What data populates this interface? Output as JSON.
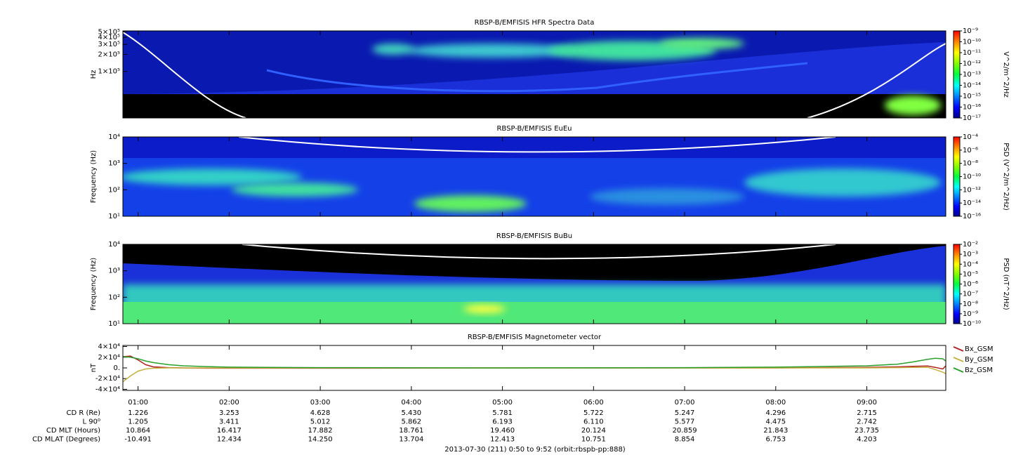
{
  "chart_data": [
    {
      "type": "spectrogram",
      "title": "RBSP-B/EMFISIS  HFR Spectra Data",
      "ylabel": "Hz",
      "log_y": true,
      "ylim": [
        15000,
        520000
      ],
      "yticks": [
        {
          "value": 500000,
          "label": "5×10⁵"
        },
        {
          "value": 400000,
          "label": "4×10⁵"
        },
        {
          "value": 300000,
          "label": "3×10⁵"
        },
        {
          "value": 200000,
          "label": "2×10⁵"
        },
        {
          "value": 100000,
          "label": "1×10⁵"
        }
      ],
      "colorbar_label": "V^2/m^2/Hz",
      "zlim": [
        1e-17,
        1e-09
      ],
      "zticks": [
        {
          "value": 1e-09,
          "label": "10⁻⁹"
        },
        {
          "value": 1e-10,
          "label": "10⁻¹⁰"
        },
        {
          "value": 1e-11,
          "label": "10⁻¹¹"
        },
        {
          "value": 1e-12,
          "label": "10⁻¹²"
        },
        {
          "value": 1e-13,
          "label": "10⁻¹³"
        },
        {
          "value": 1e-14,
          "label": "10⁻¹⁴"
        },
        {
          "value": 1e-15,
          "label": "10⁻¹⁵"
        },
        {
          "value": 1e-16,
          "label": "10⁻¹⁶"
        },
        {
          "value": 1e-17,
          "label": "10⁻¹⁷"
        }
      ]
    },
    {
      "type": "spectrogram",
      "title": "RBSP-B/EMFISIS  EuEu",
      "ylabel": "Frequency (Hz)",
      "log_y": true,
      "ylim": [
        10,
        10000
      ],
      "yticks": [
        {
          "value": 10000,
          "label": "10⁴"
        },
        {
          "value": 1000,
          "label": "10³"
        },
        {
          "value": 100,
          "label": "10²"
        },
        {
          "value": 10,
          "label": "10¹"
        }
      ],
      "colorbar_label": "PSD (V^2/m^2/Hz)",
      "zlim": [
        1e-16,
        0.0001
      ],
      "zticks": [
        {
          "value": 0.0001,
          "label": "10⁻⁴"
        },
        {
          "value": 1e-06,
          "label": "10⁻⁶"
        },
        {
          "value": 1e-08,
          "label": "10⁻⁸"
        },
        {
          "value": 1e-10,
          "label": "10⁻¹⁰"
        },
        {
          "value": 1e-12,
          "label": "10⁻¹²"
        },
        {
          "value": 1e-14,
          "label": "10⁻¹⁴"
        },
        {
          "value": 1e-16,
          "label": "10⁻¹⁶"
        }
      ]
    },
    {
      "type": "spectrogram",
      "title": "RBSP-B/EMFISIS  BuBu",
      "ylabel": "Frequency (Hz)",
      "log_y": true,
      "ylim": [
        10,
        10000
      ],
      "yticks": [
        {
          "value": 10000,
          "label": "10⁴"
        },
        {
          "value": 1000,
          "label": "10³"
        },
        {
          "value": 100,
          "label": "10²"
        },
        {
          "value": 10,
          "label": "10¹"
        }
      ],
      "colorbar_label": "PSD (nT^2/Hz)",
      "zlim": [
        1e-10,
        0.01
      ],
      "zticks": [
        {
          "value": 0.01,
          "label": "10⁻²"
        },
        {
          "value": 0.001,
          "label": "10⁻³"
        },
        {
          "value": 0.0001,
          "label": "10⁻⁴"
        },
        {
          "value": 1e-05,
          "label": "10⁻⁵"
        },
        {
          "value": 1e-06,
          "label": "10⁻⁶"
        },
        {
          "value": 1e-07,
          "label": "10⁻⁷"
        },
        {
          "value": 1e-08,
          "label": "10⁻⁸"
        },
        {
          "value": 1e-09,
          "label": "10⁻⁹"
        },
        {
          "value": 1e-10,
          "label": "10⁻¹⁰"
        }
      ]
    },
    {
      "type": "line",
      "title": "RBSP-B/EMFISIS  Magnetometer vector",
      "ylabel": "nT",
      "ylim": [
        -42000,
        42000
      ],
      "yticks": [
        {
          "value": 40000,
          "label": "4×10⁴"
        },
        {
          "value": 20000,
          "label": "2×10⁴"
        },
        {
          "value": 0,
          "label": "0."
        },
        {
          "value": -20000,
          "label": "-2×10⁴"
        },
        {
          "value": -40000,
          "label": "-4×10⁴"
        }
      ],
      "x": [
        50,
        55,
        60,
        65,
        70,
        80,
        90,
        105,
        120,
        180,
        300,
        420,
        480,
        540,
        560,
        570,
        580,
        585,
        590,
        592
      ],
      "series": [
        {
          "name": "Bx_GSM",
          "color": "#b22222",
          "values": [
            21000,
            22000,
            15000,
            6000,
            2000,
            500,
            0,
            -500,
            -500,
            -500,
            0,
            0,
            0,
            1000,
            2000,
            3000,
            3500,
            1000,
            -2000,
            4000
          ]
        },
        {
          "name": "By_GSM",
          "color": "#c8b040",
          "values": [
            -26000,
            -15000,
            -6000,
            -2000,
            -500,
            0,
            0,
            0,
            0,
            0,
            0,
            0,
            0,
            0,
            500,
            1000,
            1000,
            -3000,
            -8000,
            -11000
          ]
        },
        {
          "name": "Bz_GSM",
          "color": "#2aa02a",
          "values": [
            21000,
            20000,
            17000,
            13000,
            10000,
            6000,
            4000,
            2500,
            1500,
            500,
            0,
            500,
            1500,
            4000,
            7000,
            11000,
            16000,
            18000,
            17000,
            13000
          ]
        }
      ]
    }
  ],
  "time_axis": {
    "xlim": [
      50,
      592
    ],
    "xticks": [
      {
        "value": 60,
        "label": "01:00"
      },
      {
        "value": 120,
        "label": "02:00"
      },
      {
        "value": 180,
        "label": "03:00"
      },
      {
        "value": 240,
        "label": "04:00"
      },
      {
        "value": 300,
        "label": "05:00"
      },
      {
        "value": 360,
        "label": "06:00"
      },
      {
        "value": 420,
        "label": "07:00"
      },
      {
        "value": 480,
        "label": "08:00"
      },
      {
        "value": 540,
        "label": "09:00"
      }
    ]
  },
  "ephemeris": {
    "rows": [
      {
        "label": "CD R (Re)",
        "values": [
          "1.226",
          "3.253",
          "4.628",
          "5.430",
          "5.781",
          "5.722",
          "5.247",
          "4.296",
          "2.715"
        ]
      },
      {
        "label": "L 90⁰",
        "values": [
          "1.205",
          "3.411",
          "5.012",
          "5.862",
          "6.193",
          "6.110",
          "5.577",
          "4.475",
          "2.742"
        ]
      },
      {
        "label": "CD MLT (Hours)",
        "values": [
          "10.864",
          "16.417",
          "17.882",
          "18.761",
          "19.460",
          "20.124",
          "20.859",
          "21.843",
          "23.735"
        ]
      },
      {
        "label": "CD MLAT (Degrees)",
        "values": [
          "-10.491",
          "12.434",
          "14.250",
          "13.704",
          "12.413",
          "10.751",
          "8.854",
          "6.753",
          "4.203"
        ]
      }
    ]
  },
  "footer": "2013-07-30 (211) 0:50 to 9:52 (orbit:rbspb-pp:888)"
}
